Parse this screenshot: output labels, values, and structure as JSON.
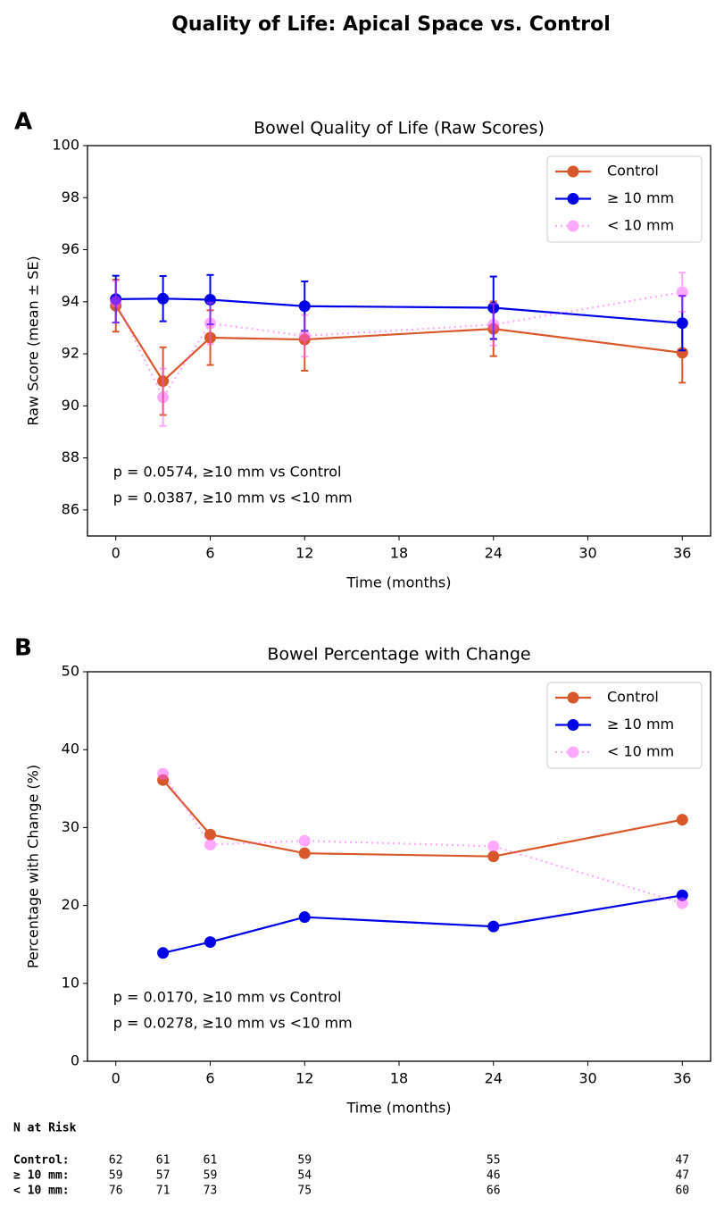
{
  "title": "Quality of Life: Apical Space vs. Control",
  "chart_data": [
    {
      "type": "line",
      "panel_label": "A",
      "title": "Bowel Quality of Life (Raw Scores)",
      "xlabel": "Time (months)",
      "ylabel": "Raw Score (mean ± SE)",
      "xlim": [
        -1.8,
        37.8
      ],
      "ylim": [
        85,
        100
      ],
      "xticks": [
        0,
        6,
        12,
        18,
        24,
        30,
        36
      ],
      "yticks": [
        86,
        88,
        90,
        92,
        94,
        96,
        98,
        100
      ],
      "legend": "upper right",
      "series": [
        {
          "name": "Control",
          "color": "#d9582b",
          "linestyle": "solid",
          "opacity": 1,
          "x": [
            0,
            3,
            6,
            12,
            24,
            36
          ],
          "values": [
            93.85,
            90.95,
            92.62,
            92.55,
            92.96,
            92.04
          ],
          "errors": [
            1.0,
            1.3,
            1.05,
            1.2,
            1.05,
            1.15
          ]
        },
        {
          "name": "≥ 10 mm",
          "color": "#0000e6",
          "linestyle": "solid",
          "opacity": 1,
          "x": [
            0,
            3,
            6,
            12,
            24,
            36
          ],
          "values": [
            94.1,
            94.12,
            94.08,
            93.83,
            93.77,
            93.18
          ],
          "errors": [
            0.9,
            0.87,
            0.95,
            0.95,
            1.2,
            1.05
          ]
        },
        {
          "name": "< 10 mm",
          "color": "#ff55ff",
          "linestyle": "dotted",
          "opacity": 0.5,
          "x": [
            0,
            3,
            6,
            12,
            24,
            36
          ],
          "values": [
            94.0,
            90.33,
            93.17,
            92.69,
            93.12,
            94.37
          ],
          "errors": [
            0.8,
            1.1,
            0.8,
            0.8,
            0.8,
            0.75
          ]
        }
      ],
      "annotations": [
        "p = 0.0574, ≥10 mm vs Control",
        "p = 0.0387, ≥10 mm vs <10 mm"
      ]
    },
    {
      "type": "line",
      "panel_label": "B",
      "title": "Bowel Percentage with Change",
      "xlabel": "Time (months)",
      "ylabel": "Percentage with Change (%)",
      "xlim": [
        -1.8,
        37.8
      ],
      "ylim": [
        0,
        50
      ],
      "xticks": [
        0,
        6,
        12,
        18,
        24,
        30,
        36
      ],
      "yticks": [
        0,
        10,
        20,
        30,
        40,
        50
      ],
      "legend": "upper right",
      "series": [
        {
          "name": "Control",
          "color": "#d9582b",
          "linestyle": "solid",
          "opacity": 1,
          "x": [
            3,
            6,
            12,
            24,
            36
          ],
          "values": [
            36.1,
            29.1,
            26.7,
            26.3,
            31.0
          ]
        },
        {
          "name": "≥ 10 mm",
          "color": "#0000e6",
          "linestyle": "solid",
          "opacity": 1,
          "x": [
            3,
            6,
            12,
            24,
            36
          ],
          "values": [
            13.9,
            15.3,
            18.5,
            17.3,
            21.3
          ]
        },
        {
          "name": "< 10 mm",
          "color": "#ff55ff",
          "linestyle": "dotted",
          "opacity": 0.5,
          "x": [
            3,
            6,
            12,
            24,
            36
          ],
          "values": [
            36.9,
            27.8,
            28.3,
            27.6,
            20.3
          ]
        }
      ],
      "annotations": [
        "p = 0.0170, ≥10 mm vs Control",
        "p = 0.0278, ≥10 mm vs <10 mm"
      ]
    }
  ],
  "risk_table": {
    "title": "N at Risk",
    "x": [
      0,
      3,
      6,
      12,
      24,
      36
    ],
    "rows": [
      {
        "label": "Control:",
        "values": [
          62,
          61,
          61,
          59,
          55,
          47
        ]
      },
      {
        "label": "≥ 10 mm:",
        "values": [
          59,
          57,
          59,
          54,
          46,
          47
        ]
      },
      {
        "label": "< 10 mm:",
        "values": [
          76,
          71,
          73,
          75,
          66,
          60
        ]
      }
    ]
  }
}
